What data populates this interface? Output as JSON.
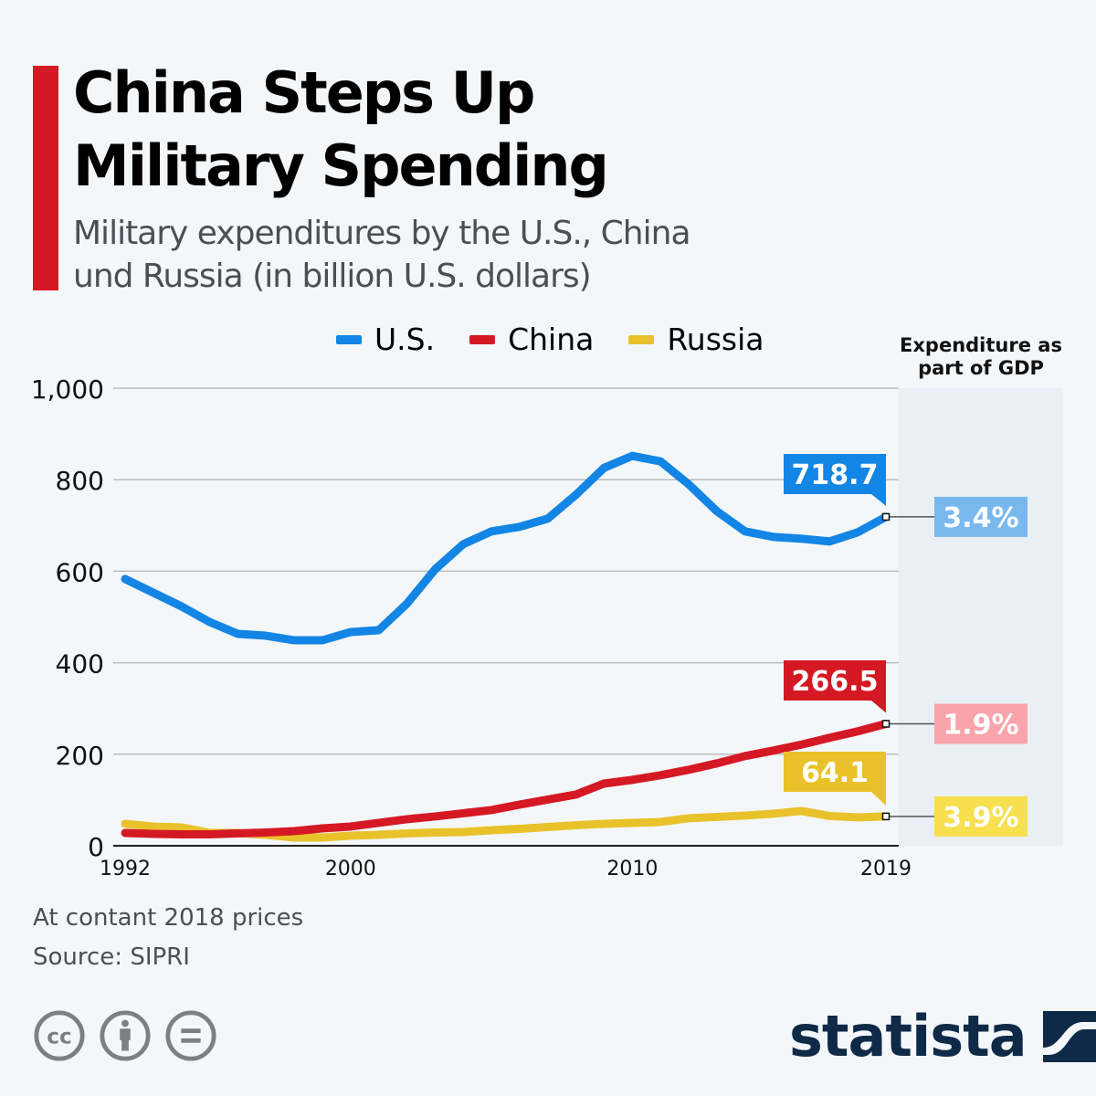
{
  "header": {
    "title_line1": "China Steps Up",
    "title_line2": "Military Spending",
    "subtitle_line1": "Military expenditures by the U.S., China",
    "subtitle_line2": "und Russia (in billion U.S. dollars)"
  },
  "legend": [
    {
      "label": "U.S.",
      "color": "#1385e5"
    },
    {
      "label": "China",
      "color": "#d51924"
    },
    {
      "label": "Russia",
      "color": "#e9c22b"
    }
  ],
  "gdp_panel": {
    "heading_line1": "Expenditure as",
    "heading_line2": "part of GDP",
    "badges": [
      {
        "series": "U.S.",
        "value": "3.4%",
        "color": "#79b8ef"
      },
      {
        "series": "China",
        "value": "1.9%",
        "color": "#f9a3aa"
      },
      {
        "series": "Russia",
        "value": "3.9%",
        "color": "#f7df4e"
      }
    ]
  },
  "footer": {
    "note": "At contant 2018 prices",
    "source": "Source: SIPRI",
    "license_icons": [
      "cc-icon",
      "attribution-icon",
      "no-derivatives-icon"
    ],
    "brand": "statista"
  },
  "chart_data": {
    "type": "line",
    "title": "China Steps Up Military Spending",
    "subtitle": "Military expenditures by the U.S., China und Russia (in billion U.S. dollars)",
    "xlabel": "",
    "ylabel": "",
    "x": [
      1992,
      1993,
      1994,
      1995,
      1996,
      1997,
      1998,
      1999,
      2000,
      2001,
      2002,
      2003,
      2004,
      2005,
      2006,
      2007,
      2008,
      2009,
      2010,
      2011,
      2012,
      2013,
      2014,
      2015,
      2016,
      2017,
      2018,
      2019
    ],
    "x_ticks": [
      "1992",
      "2000",
      "2010",
      "2019"
    ],
    "y_ticks": [
      "0",
      "200",
      "400",
      "600",
      "800",
      "1,000"
    ],
    "ylim": [
      0,
      1000
    ],
    "xlim": [
      1992,
      2019
    ],
    "grid": true,
    "legend_position": "top",
    "series": [
      {
        "name": "U.S.",
        "color": "#1385e5",
        "end_label": "718.7",
        "values": [
          583,
          553,
          523,
          489,
          463,
          459,
          449,
          449,
          467,
          471,
          529,
          604,
          659,
          687,
          697,
          715,
          767,
          826,
          852,
          840,
          790,
          731,
          687,
          675,
          671,
          665,
          685,
          718.7
        ]
      },
      {
        "name": "China",
        "color": "#d51924",
        "end_label": "266.5",
        "values": [
          28,
          26,
          25,
          25,
          27,
          29,
          32,
          38,
          42,
          50,
          58,
          64,
          71,
          78,
          90,
          101,
          112,
          136,
          144,
          154,
          166,
          180,
          196,
          208,
          221,
          236,
          250,
          266.5
        ]
      },
      {
        "name": "Russia",
        "color": "#e9c22b",
        "end_label": "64.1",
        "values": [
          48,
          42,
          40,
          28,
          28,
          24,
          18,
          18,
          22,
          24,
          27,
          29,
          30,
          34,
          37,
          41,
          45,
          48,
          50,
          52,
          60,
          63,
          66,
          70,
          76,
          65,
          62,
          64.1
        ]
      }
    ],
    "annotations": [
      {
        "text": "Expenditure as part of GDP",
        "values": {
          "U.S.": "3.4%",
          "China": "1.9%",
          "Russia": "3.9%"
        }
      }
    ]
  }
}
